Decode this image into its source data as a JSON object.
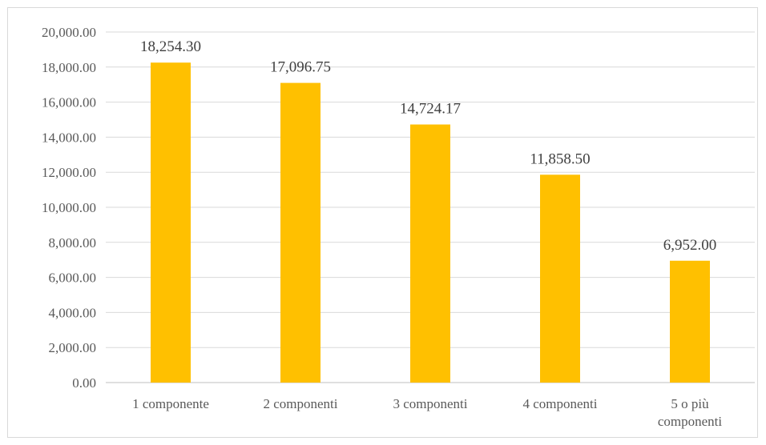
{
  "chart_data": {
    "type": "bar",
    "title": "",
    "xlabel": "",
    "ylabel": "",
    "categories": [
      [
        "1 componente"
      ],
      [
        "2 componenti"
      ],
      [
        "3 componenti"
      ],
      [
        "4 componenti"
      ],
      [
        "5 o più",
        "componenti"
      ]
    ],
    "values": [
      18254.3,
      17096.75,
      14724.17,
      11858.5,
      6952.0
    ],
    "data_labels": [
      "18,254.30",
      "17,096.75",
      "14,724.17",
      "11,858.50",
      "6,952.00"
    ],
    "yticks": [
      "0.00",
      "2,000.00",
      "4,000.00",
      "6,000.00",
      "8,000.00",
      "10,000.00",
      "12,000.00",
      "14,000.00",
      "16,000.00",
      "18,000.00",
      "20,000.00"
    ],
    "ylim": [
      0,
      20000
    ],
    "grid": true,
    "legend": "none",
    "bar_color": "#FFC000",
    "grid_color": "#D9D9D9"
  }
}
